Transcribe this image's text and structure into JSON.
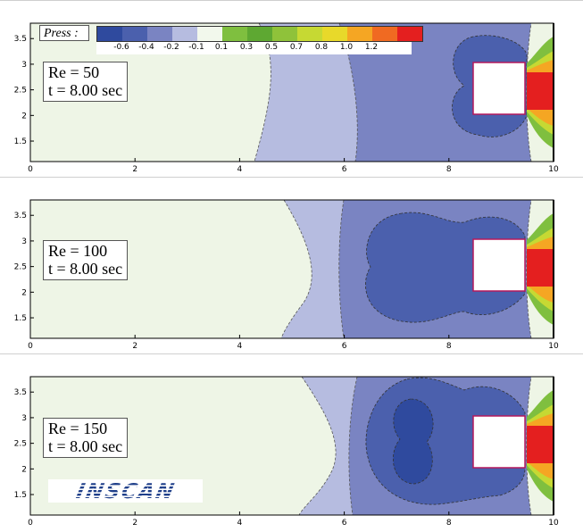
{
  "chart_data": {
    "type": "contour",
    "quantity_label": "Press :",
    "levels": [
      -0.6,
      -0.4,
      -0.2,
      -0.1,
      0.1,
      0.3,
      0.5,
      0.7,
      0.8,
      1.0,
      1.2
    ],
    "level_labels": [
      "-0.6",
      "-0.4",
      "-0.2",
      "-0.1",
      "0.1",
      "0.3",
      "0.5",
      "0.7",
      "0.8",
      "1.0",
      "1.2"
    ],
    "legend_colors": [
      "#2f4a9e",
      "#4b60ad",
      "#7a84c2",
      "#b6bce0",
      "#f2f8ec",
      "#7fbf3f",
      "#5ea832",
      "#8fc23a",
      "#c6d933",
      "#e8d92a",
      "#f5a623",
      "#f06a22",
      "#e41f1f"
    ],
    "xlim": [
      0,
      10
    ],
    "ylim": [
      1.1,
      3.8
    ],
    "xticks": [
      "0",
      "2",
      "4",
      "6",
      "8",
      "10"
    ],
    "yticks": [
      "1.5",
      "2",
      "2.5",
      "3",
      "3.5"
    ],
    "obstacle": {
      "x": [
        8.5,
        9.5
      ],
      "y": [
        2.0,
        3.0
      ]
    },
    "panels": [
      {
        "re_label": "Re = 50",
        "time_label": "t = 8.00 sec",
        "Re": 50,
        "t": 8.0
      },
      {
        "re_label": "Re = 100",
        "time_label": "t = 8.00 sec",
        "Re": 100,
        "t": 8.0
      },
      {
        "re_label": "Re = 150",
        "time_label": "t = 8.00 sec",
        "Re": 150,
        "t": 8.0
      }
    ]
  },
  "logo_text": "INSCAN"
}
